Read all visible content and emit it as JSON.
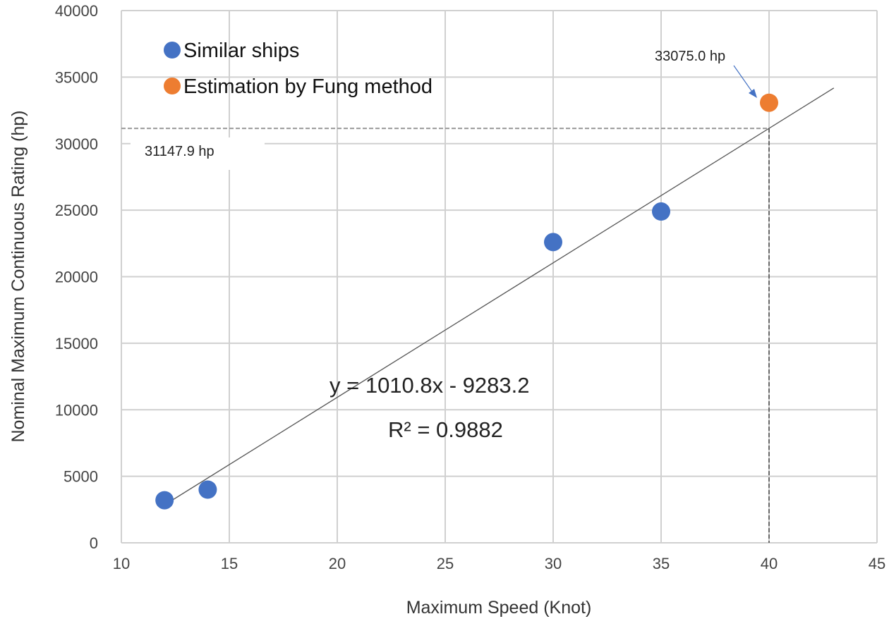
{
  "chart_data": {
    "type": "scatter",
    "xlabel": "Maximum Speed (Knot)",
    "ylabel": "Nominal Maximum Continuous Rating (hp)",
    "xlim": [
      10,
      45
    ],
    "ylim": [
      0,
      40000
    ],
    "xticks": [
      "10",
      "15",
      "20",
      "25",
      "30",
      "35",
      "40",
      "45"
    ],
    "yticks": [
      "0",
      "5000",
      "10000",
      "15000",
      "20000",
      "25000",
      "30000",
      "35000",
      "40000"
    ],
    "grid": true,
    "legend_position": "top-left",
    "series": [
      {
        "name": "Similar ships",
        "color": "#4472C4",
        "points": [
          [
            12,
            3200
          ],
          [
            14,
            4000
          ],
          [
            30,
            22600
          ],
          [
            35,
            24900
          ]
        ]
      },
      {
        "name": "Estimation by Fung method",
        "color": "#ED7D31",
        "points": [
          [
            40,
            33075
          ]
        ]
      }
    ],
    "trendline": {
      "slope": 1010.8,
      "intercept": -9283.2,
      "x_range": [
        12,
        43
      ],
      "equation": "y = 1010.8x - 9283.2",
      "r2": "R² = 0.9882"
    },
    "annotations": {
      "estimate_label": "33075.0 hp",
      "regression_label": "31147.9 hp",
      "regression_value": 31147.9,
      "target_speed": 40
    }
  }
}
